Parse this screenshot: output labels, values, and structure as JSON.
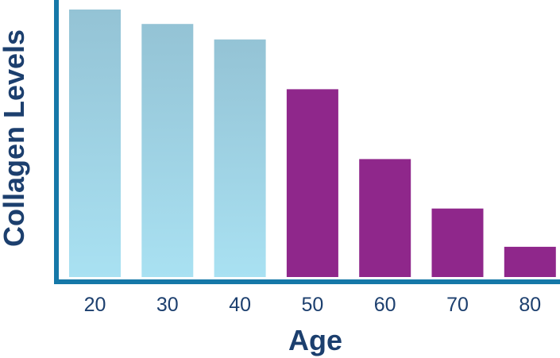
{
  "chart_data": {
    "type": "bar",
    "title": "",
    "xlabel": "Age",
    "ylabel": "Collagen Levels",
    "categories": [
      "20",
      "30",
      "40",
      "50",
      "60",
      "70",
      "80"
    ],
    "values": [
      100,
      94.6,
      88.8,
      70.2,
      44.1,
      25.6,
      11.3
    ],
    "ylim": [
      0,
      100
    ],
    "grid": false,
    "legend": "none",
    "colors": {
      "axis": "#1578a8",
      "text": "#1c3f6e",
      "young_bar_top": "#94c3d5",
      "young_bar_bottom": "#a9e1f2",
      "old_bar": "#8f278b"
    },
    "bar_colors": [
      "young",
      "young",
      "young",
      "old",
      "old",
      "old",
      "old"
    ]
  }
}
